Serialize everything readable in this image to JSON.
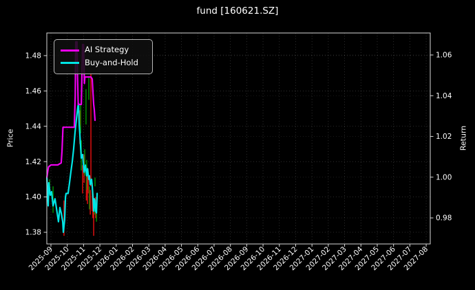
{
  "title": "fund [160621.SZ]",
  "colors": {
    "background": "#000000",
    "text": "#ffffff",
    "spine": "#d9d9d9",
    "grid": "#ffffff",
    "ai_strategy": "#ee00ee",
    "buy_and_hold": "#00e5e5",
    "bar_up": "#009900",
    "bar_down": "#ee1111"
  },
  "legend": {
    "items": [
      {
        "label": "AI Strategy",
        "color": "#ee00ee"
      },
      {
        "label": "Buy-and-Hold",
        "color": "#00e5e5"
      }
    ]
  },
  "chart_data": {
    "type": "line",
    "title": "fund [160621.SZ]",
    "xlabel": "",
    "grid": true,
    "legend_position": "upper left",
    "x_tick_labels": [
      "2025-09",
      "2025-10",
      "2025-11",
      "2025-12",
      "2026-01",
      "2026-02",
      "2026-03",
      "2026-04",
      "2026-05",
      "2026-06",
      "2026-07",
      "2026-08",
      "2026-09",
      "2026-10",
      "2026-11",
      "2026-12",
      "2027-01",
      "2027-02",
      "2027-03",
      "2027-04",
      "2027-05",
      "2027-06",
      "2027-07",
      "2027-08"
    ],
    "x_range_months": [
      -0.253,
      23.25
    ],
    "left_axis": {
      "label": "Price",
      "ticks": [
        1.38,
        1.4,
        1.42,
        1.44,
        1.46,
        1.48
      ],
      "range": [
        1.3734,
        1.4928
      ]
    },
    "right_axis": {
      "label": "Return",
      "ticks": [
        0.98,
        1.0,
        1.02,
        1.04,
        1.06
      ],
      "range": [
        0.9672,
        1.0708
      ]
    },
    "series": [
      {
        "name": "AI Strategy",
        "axis": "right",
        "color": "#ee00ee",
        "points": [
          [
            -0.25,
            1.0
          ],
          [
            -0.15,
            1.005
          ],
          [
            0.0,
            1.006
          ],
          [
            0.42,
            1.006
          ],
          [
            0.63,
            1.007
          ],
          [
            0.68,
            1.013
          ],
          [
            0.74,
            1.0245
          ],
          [
            1.43,
            1.0245
          ],
          [
            1.49,
            1.04
          ],
          [
            1.52,
            1.0664
          ],
          [
            1.6,
            1.0664
          ],
          [
            1.63,
            1.05
          ],
          [
            1.67,
            1.0357
          ],
          [
            1.86,
            1.0357
          ],
          [
            1.9,
            1.05
          ],
          [
            1.94,
            1.0651
          ],
          [
            2.0,
            1.0651
          ],
          [
            2.05,
            1.046
          ],
          [
            2.08,
            1.0492
          ],
          [
            2.45,
            1.0492
          ],
          [
            2.53,
            1.0482
          ],
          [
            2.57,
            1.0424
          ],
          [
            2.62,
            1.0357
          ],
          [
            2.66,
            1.033
          ],
          [
            2.7,
            1.0279
          ]
        ]
      },
      {
        "name": "Buy-and-Hold",
        "axis": "left",
        "color": "#00e5e5",
        "points": [
          [
            -0.25,
            1.411
          ],
          [
            -0.21,
            1.402
          ],
          [
            -0.17,
            1.395
          ],
          [
            -0.13,
            1.408
          ],
          [
            -0.04,
            1.401
          ],
          [
            0.04,
            1.403
          ],
          [
            0.13,
            1.395
          ],
          [
            0.25,
            1.399
          ],
          [
            0.38,
            1.391
          ],
          [
            0.46,
            1.386
          ],
          [
            0.55,
            1.394
          ],
          [
            0.63,
            1.391
          ],
          [
            0.72,
            1.386
          ],
          [
            0.76,
            1.38
          ],
          [
            0.84,
            1.387
          ],
          [
            0.89,
            1.4
          ],
          [
            0.93,
            1.402
          ],
          [
            1.05,
            1.402
          ],
          [
            1.14,
            1.408
          ],
          [
            1.22,
            1.414
          ],
          [
            1.31,
            1.42
          ],
          [
            1.39,
            1.427
          ],
          [
            1.48,
            1.437
          ],
          [
            1.56,
            1.444
          ],
          [
            1.65,
            1.451
          ],
          [
            1.69,
            1.453
          ],
          [
            1.73,
            1.441
          ],
          [
            1.77,
            1.436
          ],
          [
            1.86,
            1.422
          ],
          [
            1.94,
            1.424
          ],
          [
            2.03,
            1.414
          ],
          [
            2.11,
            1.418
          ],
          [
            2.19,
            1.412
          ],
          [
            2.24,
            1.416
          ],
          [
            2.32,
            1.41
          ],
          [
            2.36,
            1.412
          ],
          [
            2.41,
            1.407
          ],
          [
            2.49,
            1.41
          ],
          [
            2.53,
            1.406
          ],
          [
            2.57,
            1.401
          ],
          [
            2.62,
            1.392
          ],
          [
            2.66,
            1.399
          ],
          [
            2.7,
            1.398
          ],
          [
            2.74,
            1.392
          ],
          [
            2.79,
            1.391
          ],
          [
            2.83,
            1.402
          ]
        ]
      }
    ],
    "range_bars": {
      "description": "daily high-low bars, price axis",
      "bars": [
        [
          -0.08,
          1.403,
          1.41,
          "up"
        ],
        [
          0.13,
          1.391,
          1.406,
          "up"
        ],
        [
          0.8,
          1.378,
          1.398,
          "down"
        ],
        [
          1.77,
          1.43,
          1.449,
          "down"
        ],
        [
          1.82,
          1.436,
          1.452,
          "up"
        ],
        [
          1.86,
          1.415,
          1.432,
          "up"
        ],
        [
          1.94,
          1.402,
          1.418,
          "down"
        ],
        [
          2.03,
          1.408,
          1.424,
          "down"
        ],
        [
          2.07,
          1.412,
          1.427,
          "up"
        ],
        [
          2.15,
          1.441,
          1.461,
          "up"
        ],
        [
          2.17,
          1.398,
          1.414,
          "down"
        ],
        [
          2.19,
          1.404,
          1.421,
          "up"
        ],
        [
          2.24,
          1.396,
          1.412,
          "down"
        ],
        [
          2.28,
          1.402,
          1.416,
          "down"
        ],
        [
          2.32,
          1.455,
          1.468,
          "up"
        ],
        [
          2.36,
          1.393,
          1.406,
          "up"
        ],
        [
          2.41,
          1.39,
          1.404,
          "down"
        ],
        [
          2.45,
          1.406,
          1.47,
          "down"
        ],
        [
          2.53,
          1.392,
          1.408,
          "down"
        ],
        [
          2.57,
          1.388,
          1.402,
          "down"
        ],
        [
          2.62,
          1.378,
          1.397,
          "down"
        ],
        [
          2.66,
          1.39,
          1.398,
          "up"
        ],
        [
          2.7,
          1.406,
          1.411,
          "up"
        ],
        [
          2.74,
          1.388,
          1.4,
          "down"
        ],
        [
          2.79,
          1.386,
          1.391,
          "up"
        ]
      ]
    }
  }
}
